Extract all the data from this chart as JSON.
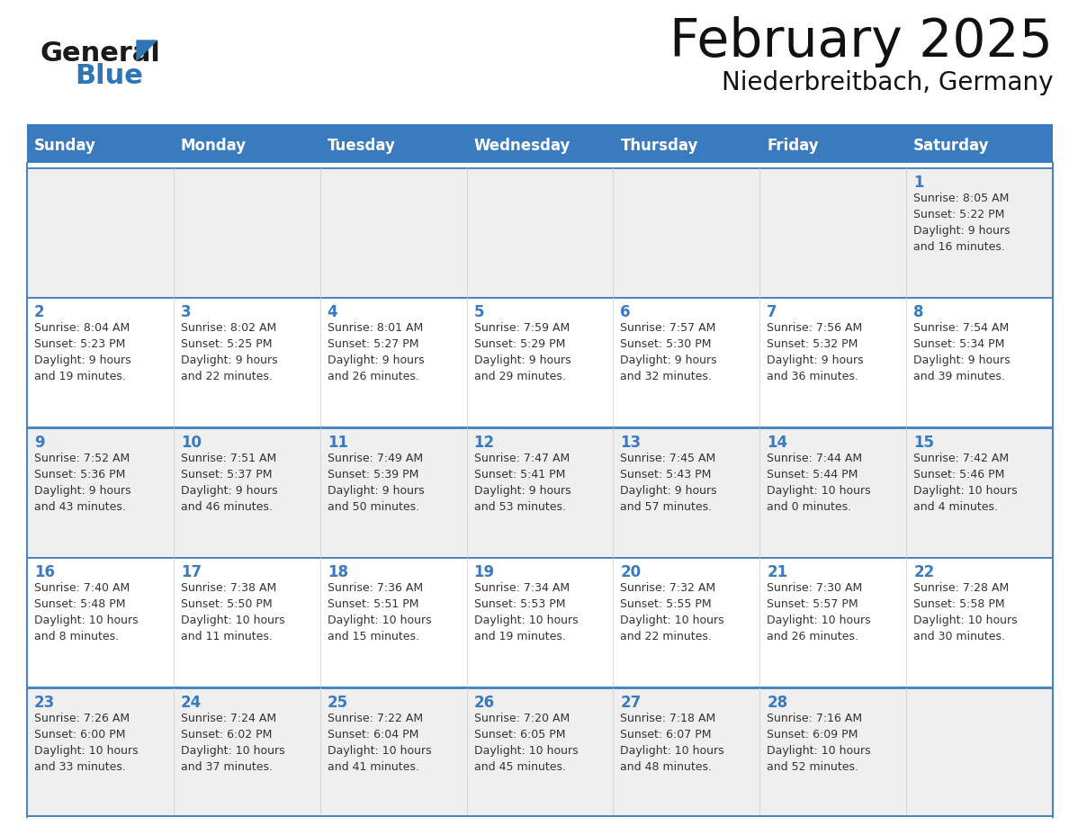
{
  "title": "February 2025",
  "subtitle": "Niederbreitbach, Germany",
  "days_of_week": [
    "Sunday",
    "Monday",
    "Tuesday",
    "Wednesday",
    "Thursday",
    "Friday",
    "Saturday"
  ],
  "header_bg": "#3A7BBF",
  "header_text": "#FFFFFF",
  "cell_bg_odd": "#EFEFEF",
  "cell_bg_even": "#FFFFFF",
  "row_border_color": "#4A85BE",
  "day_num_color": "#3A7BBF",
  "text_color": "#333333",
  "title_color": "#111111",
  "logo_general_color": "#1A1A1A",
  "logo_blue_color": "#2E75B6",
  "weeks": [
    [
      {
        "day": null,
        "text": ""
      },
      {
        "day": null,
        "text": ""
      },
      {
        "day": null,
        "text": ""
      },
      {
        "day": null,
        "text": ""
      },
      {
        "day": null,
        "text": ""
      },
      {
        "day": null,
        "text": ""
      },
      {
        "day": 1,
        "text": "Sunrise: 8:05 AM\nSunset: 5:22 PM\nDaylight: 9 hours\nand 16 minutes."
      }
    ],
    [
      {
        "day": 2,
        "text": "Sunrise: 8:04 AM\nSunset: 5:23 PM\nDaylight: 9 hours\nand 19 minutes."
      },
      {
        "day": 3,
        "text": "Sunrise: 8:02 AM\nSunset: 5:25 PM\nDaylight: 9 hours\nand 22 minutes."
      },
      {
        "day": 4,
        "text": "Sunrise: 8:01 AM\nSunset: 5:27 PM\nDaylight: 9 hours\nand 26 minutes."
      },
      {
        "day": 5,
        "text": "Sunrise: 7:59 AM\nSunset: 5:29 PM\nDaylight: 9 hours\nand 29 minutes."
      },
      {
        "day": 6,
        "text": "Sunrise: 7:57 AM\nSunset: 5:30 PM\nDaylight: 9 hours\nand 32 minutes."
      },
      {
        "day": 7,
        "text": "Sunrise: 7:56 AM\nSunset: 5:32 PM\nDaylight: 9 hours\nand 36 minutes."
      },
      {
        "day": 8,
        "text": "Sunrise: 7:54 AM\nSunset: 5:34 PM\nDaylight: 9 hours\nand 39 minutes."
      }
    ],
    [
      {
        "day": 9,
        "text": "Sunrise: 7:52 AM\nSunset: 5:36 PM\nDaylight: 9 hours\nand 43 minutes."
      },
      {
        "day": 10,
        "text": "Sunrise: 7:51 AM\nSunset: 5:37 PM\nDaylight: 9 hours\nand 46 minutes."
      },
      {
        "day": 11,
        "text": "Sunrise: 7:49 AM\nSunset: 5:39 PM\nDaylight: 9 hours\nand 50 minutes."
      },
      {
        "day": 12,
        "text": "Sunrise: 7:47 AM\nSunset: 5:41 PM\nDaylight: 9 hours\nand 53 minutes."
      },
      {
        "day": 13,
        "text": "Sunrise: 7:45 AM\nSunset: 5:43 PM\nDaylight: 9 hours\nand 57 minutes."
      },
      {
        "day": 14,
        "text": "Sunrise: 7:44 AM\nSunset: 5:44 PM\nDaylight: 10 hours\nand 0 minutes."
      },
      {
        "day": 15,
        "text": "Sunrise: 7:42 AM\nSunset: 5:46 PM\nDaylight: 10 hours\nand 4 minutes."
      }
    ],
    [
      {
        "day": 16,
        "text": "Sunrise: 7:40 AM\nSunset: 5:48 PM\nDaylight: 10 hours\nand 8 minutes."
      },
      {
        "day": 17,
        "text": "Sunrise: 7:38 AM\nSunset: 5:50 PM\nDaylight: 10 hours\nand 11 minutes."
      },
      {
        "day": 18,
        "text": "Sunrise: 7:36 AM\nSunset: 5:51 PM\nDaylight: 10 hours\nand 15 minutes."
      },
      {
        "day": 19,
        "text": "Sunrise: 7:34 AM\nSunset: 5:53 PM\nDaylight: 10 hours\nand 19 minutes."
      },
      {
        "day": 20,
        "text": "Sunrise: 7:32 AM\nSunset: 5:55 PM\nDaylight: 10 hours\nand 22 minutes."
      },
      {
        "day": 21,
        "text": "Sunrise: 7:30 AM\nSunset: 5:57 PM\nDaylight: 10 hours\nand 26 minutes."
      },
      {
        "day": 22,
        "text": "Sunrise: 7:28 AM\nSunset: 5:58 PM\nDaylight: 10 hours\nand 30 minutes."
      }
    ],
    [
      {
        "day": 23,
        "text": "Sunrise: 7:26 AM\nSunset: 6:00 PM\nDaylight: 10 hours\nand 33 minutes."
      },
      {
        "day": 24,
        "text": "Sunrise: 7:24 AM\nSunset: 6:02 PM\nDaylight: 10 hours\nand 37 minutes."
      },
      {
        "day": 25,
        "text": "Sunrise: 7:22 AM\nSunset: 6:04 PM\nDaylight: 10 hours\nand 41 minutes."
      },
      {
        "day": 26,
        "text": "Sunrise: 7:20 AM\nSunset: 6:05 PM\nDaylight: 10 hours\nand 45 minutes."
      },
      {
        "day": 27,
        "text": "Sunrise: 7:18 AM\nSunset: 6:07 PM\nDaylight: 10 hours\nand 48 minutes."
      },
      {
        "day": 28,
        "text": "Sunrise: 7:16 AM\nSunset: 6:09 PM\nDaylight: 10 hours\nand 52 minutes."
      },
      {
        "day": null,
        "text": ""
      }
    ]
  ]
}
